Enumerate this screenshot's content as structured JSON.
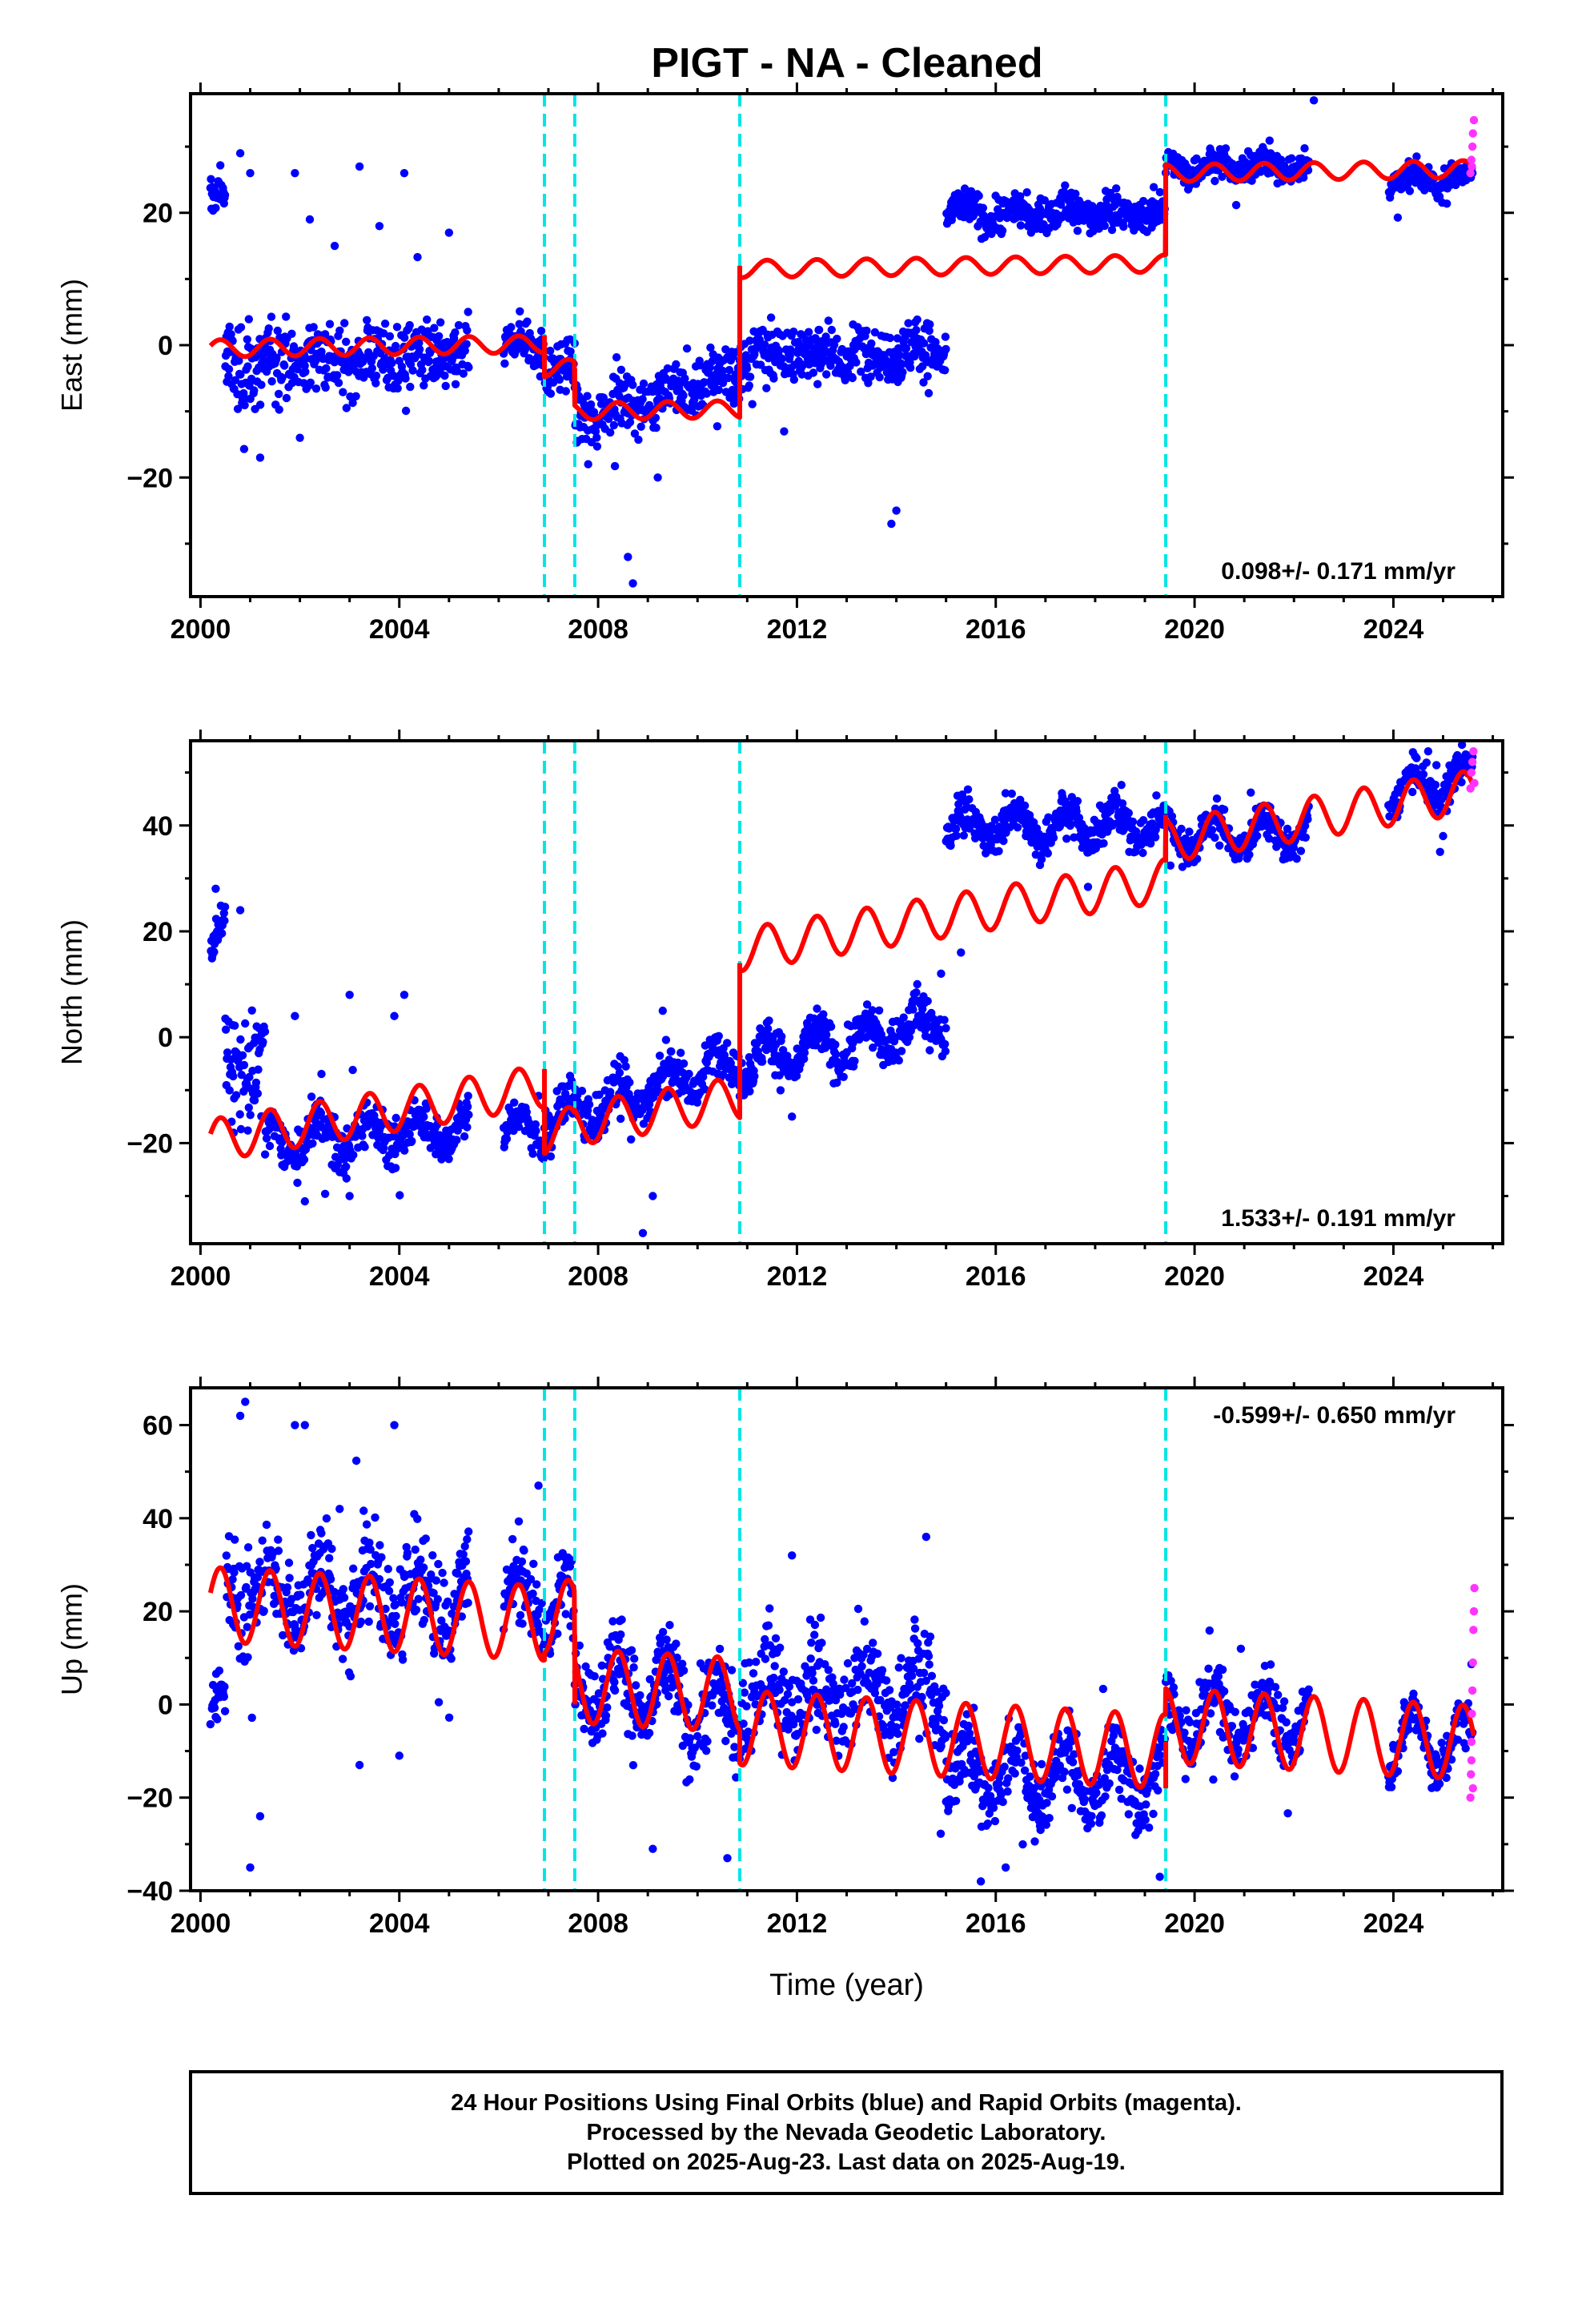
{
  "chart_data": {
    "type": "scatter",
    "title": "PIGT  - NA - Cleaned",
    "x_tick_labels": [
      "2000",
      "2004",
      "2008",
      "2012",
      "2016",
      "2020",
      "2024"
    ],
    "xlabel": "Time (year)",
    "xlim": [
      1999.8,
      2026.2
    ],
    "colors": {
      "final_orbits": "#0000ff",
      "rapid_orbits": "#ff33ff",
      "model": "#ff0000",
      "offsets": "#00e5e5",
      "frame": "#000000"
    },
    "offset_epochs": [
      2006.92,
      2007.53,
      2010.85,
      2019.42
    ],
    "panels": [
      {
        "component": "east",
        "ylabel": "East (mm)",
        "ylim": [
          -38,
          38
        ],
        "yticks": [
          -20,
          0,
          20
        ],
        "y_tick_labels": [
          "−20",
          "0",
          "20"
        ],
        "rate_label": "0.098+/- 0.171 mm/yr",
        "rate_position": "bottom-right",
        "data_segments": [
          {
            "x": [
              2000.2,
              2000.5
            ],
            "y": [
              22,
              22
            ],
            "spread": 2.5
          },
          {
            "x": [
              2000.5,
              2001.3
            ],
            "y": [
              -3,
              -3
            ],
            "spread": 6
          },
          {
            "x": [
              2001.3,
              2005.4
            ],
            "y": [
              -2.5,
              -1.5
            ],
            "spread": 4.5
          },
          {
            "x": [
              2006.1,
              2006.92
            ],
            "y": [
              0,
              0
            ],
            "spread": 3
          },
          {
            "x": [
              2006.92,
              2007.53
            ],
            "y": [
              -4,
              -4
            ],
            "spread": 3.5
          },
          {
            "x": [
              2007.53,
              2010.85
            ],
            "y": [
              -11,
              -4
            ],
            "spread": 4
          },
          {
            "x": [
              2010.85,
              2015.0
            ],
            "y": [
              -1.5,
              -1
            ],
            "spread": 4
          },
          {
            "x": [
              2015.0,
              2019.42
            ],
            "y": [
              20,
              20
            ],
            "spread": 2.5
          },
          {
            "x": [
              2019.42,
              2022.3
            ],
            "y": [
              27,
              27
            ],
            "spread": 2
          },
          {
            "x": [
              2023.9,
              2025.6
            ],
            "y": [
              25,
              25
            ],
            "spread": 2
          }
        ],
        "outliers": [
          {
            "x": 2000.8,
            "y": 29
          },
          {
            "x": 2001.0,
            "y": 26
          },
          {
            "x": 2001.9,
            "y": 26
          },
          {
            "x": 2002.2,
            "y": 19
          },
          {
            "x": 2003.2,
            "y": 27
          },
          {
            "x": 2004.1,
            "y": 26
          },
          {
            "x": 2005.0,
            "y": 17
          },
          {
            "x": 2001.2,
            "y": -17
          },
          {
            "x": 2002.0,
            "y": -14
          },
          {
            "x": 2007.8,
            "y": -18
          },
          {
            "x": 2008.6,
            "y": -32
          },
          {
            "x": 2008.7,
            "y": -36
          },
          {
            "x": 2013.9,
            "y": -27
          },
          {
            "x": 2014.0,
            "y": -25
          },
          {
            "x": 2022.4,
            "y": 37
          },
          {
            "x": 2009.2,
            "y": -20
          },
          {
            "x": 2003.6,
            "y": 18
          },
          {
            "x": 2002.7,
            "y": 15
          }
        ],
        "rapid": [
          {
            "x": 2025.55,
            "y": 26
          },
          {
            "x": 2025.57,
            "y": 28
          },
          {
            "x": 2025.59,
            "y": 30
          },
          {
            "x": 2025.6,
            "y": 32
          },
          {
            "x": 2025.62,
            "y": 34
          },
          {
            "x": 2025.58,
            "y": 27
          }
        ],
        "model": {
          "rate": 0.098,
          "start": 2000.2,
          "end": 2025.63,
          "segments": [
            {
              "from": 2000.2,
              "to": 2006.92,
              "base": -0.5
            },
            {
              "from": 2006.92,
              "to": 2007.53,
              "base": -3.5
            },
            {
              "from": 2007.53,
              "to": 2010.85,
              "base": -10
            },
            {
              "from": 2010.85,
              "to": 2019.42,
              "base": 11.5
            },
            {
              "from": 2019.42,
              "to": 2025.63,
              "base": 26
            }
          ],
          "amplitude": 1.3,
          "jumps": [
            {
              "t": 2006.92,
              "from": 1.5,
              "to": -3.5
            },
            {
              "t": 2007.53,
              "from": -3.5,
              "to": -8
            },
            {
              "t": 2010.85,
              "from": -8.5,
              "to": 12
            },
            {
              "t": 2019.42,
              "from": 13.5,
              "to": 27.5
            }
          ]
        }
      },
      {
        "component": "north",
        "ylabel": "North (mm)",
        "ylim": [
          -39,
          56
        ],
        "yticks": [
          -20,
          0,
          20,
          40
        ],
        "y_tick_labels": [
          "−20",
          "0",
          "20",
          "40"
        ],
        "rate_label": "1.533+/- 0.191 mm/yr",
        "rate_position": "bottom-right",
        "data_segments": [
          {
            "x": [
              2000.2,
              2000.5
            ],
            "y": [
              16,
              20
            ],
            "spread": 3
          },
          {
            "x": [
              2000.5,
              2001.3
            ],
            "y": [
              -5,
              -5
            ],
            "spread": 10
          },
          {
            "x": [
              2001.3,
              2005.4
            ],
            "y": [
              -20,
              -17
            ],
            "spread": 4
          },
          {
            "x": [
              2006.1,
              2006.92
            ],
            "y": [
              -18,
              -17
            ],
            "spread": 3
          },
          {
            "x": [
              2006.92,
              2010.85
            ],
            "y": [
              -16,
              -4
            ],
            "spread": 4
          },
          {
            "x": [
              2010.85,
              2015.0
            ],
            "y": [
              -5,
              3
            ],
            "spread": 4
          },
          {
            "x": [
              2015.0,
              2019.42
            ],
            "y": [
              40,
              40
            ],
            "spread": 3.5
          },
          {
            "x": [
              2019.42,
              2022.3
            ],
            "y": [
              38,
              39
            ],
            "spread": 3
          },
          {
            "x": [
              2023.9,
              2025.6
            ],
            "y": [
              46,
              49
            ],
            "spread": 3
          }
        ],
        "outliers": [
          {
            "x": 2000.8,
            "y": 24
          },
          {
            "x": 2001.9,
            "y": 4
          },
          {
            "x": 2003.0,
            "y": 8
          },
          {
            "x": 2004.1,
            "y": 8
          },
          {
            "x": 2002.1,
            "y": -31
          },
          {
            "x": 2003.0,
            "y": -30
          },
          {
            "x": 2008.9,
            "y": -37
          },
          {
            "x": 2009.1,
            "y": -30
          },
          {
            "x": 2009.3,
            "y": 5
          },
          {
            "x": 2011.9,
            "y": -15
          },
          {
            "x": 2015.3,
            "y": 16
          },
          {
            "x": 2024.7,
            "y": 54
          },
          {
            "x": 2025.0,
            "y": 38
          },
          {
            "x": 2014.9,
            "y": 12
          },
          {
            "x": 2003.9,
            "y": 4
          }
        ],
        "rapid": [
          {
            "x": 2025.55,
            "y": 47
          },
          {
            "x": 2025.57,
            "y": 50
          },
          {
            "x": 2025.59,
            "y": 52
          },
          {
            "x": 2025.61,
            "y": 54
          },
          {
            "x": 2025.63,
            "y": 48
          }
        ],
        "model": {
          "rate": 1.533,
          "start": 2000.2,
          "end": 2025.63,
          "segments": [
            {
              "from": 2000.2,
              "to": 2006.92,
              "base": -19.5
            },
            {
              "from": 2006.92,
              "to": 2007.53,
              "base": -18
            },
            {
              "from": 2007.53,
              "to": 2010.85,
              "base": -16.5
            },
            {
              "from": 2010.85,
              "to": 2019.42,
              "base": 16.5
            },
            {
              "from": 2019.42,
              "to": 2025.63,
              "base": 37
            }
          ],
          "amplitude": 4,
          "jumps": [
            {
              "t": 2006.92,
              "from": -6,
              "to": -19
            },
            {
              "t": 2010.85,
              "from": -9.5,
              "to": 14
            },
            {
              "t": 2019.42,
              "from": 33,
              "to": 42
            }
          ]
        }
      },
      {
        "component": "up",
        "ylabel": "Up (mm)",
        "ylim": [
          -40,
          68
        ],
        "yticks": [
          -40,
          -20,
          0,
          20,
          40,
          60
        ],
        "y_tick_labels": [
          "−40",
          "−20",
          "0",
          "20",
          "40",
          "60"
        ],
        "rate_label": "-0.599+/- 0.650 mm/yr",
        "rate_position": "top-right",
        "data_segments": [
          {
            "x": [
              2000.2,
              2000.5
            ],
            "y": [
              -3,
              -3
            ],
            "spread": 5
          },
          {
            "x": [
              2000.5,
              2005.4
            ],
            "y": [
              25,
              23
            ],
            "spread": 10
          },
          {
            "x": [
              2006.1,
              2007.53
            ],
            "y": [
              24,
              20
            ],
            "spread": 8
          },
          {
            "x": [
              2007.53,
              2010.85
            ],
            "y": [
              6,
              -2
            ],
            "spread": 9
          },
          {
            "x": [
              2010.85,
              2015.0
            ],
            "y": [
              2,
              3
            ],
            "spread": 10
          },
          {
            "x": [
              2015.0,
              2019.42
            ],
            "y": [
              -15,
              -16
            ],
            "spread": 7
          },
          {
            "x": [
              2019.42,
              2022.3
            ],
            "y": [
              -3,
              -3
            ],
            "spread": 6
          },
          {
            "x": [
              2023.9,
              2025.6
            ],
            "y": [
              -7,
              -9
            ],
            "spread": 5
          }
        ],
        "outliers": [
          {
            "x": 2000.9,
            "y": 65
          },
          {
            "x": 2000.8,
            "y": 62
          },
          {
            "x": 2001.9,
            "y": 60
          },
          {
            "x": 2002.1,
            "y": 60
          },
          {
            "x": 2003.9,
            "y": 60
          },
          {
            "x": 2001.0,
            "y": -35
          },
          {
            "x": 2003.2,
            "y": -13
          },
          {
            "x": 2004.0,
            "y": -11
          },
          {
            "x": 2001.2,
            "y": -24
          },
          {
            "x": 2009.1,
            "y": -31
          },
          {
            "x": 2010.6,
            "y": -33
          },
          {
            "x": 2015.7,
            "y": -38
          },
          {
            "x": 2016.2,
            "y": -35
          },
          {
            "x": 2019.3,
            "y": -37
          },
          {
            "x": 2014.6,
            "y": 36
          },
          {
            "x": 2011.9,
            "y": 32
          },
          {
            "x": 2006.8,
            "y": 47
          },
          {
            "x": 2002.8,
            "y": 42
          }
        ],
        "rapid": [
          {
            "x": 2025.55,
            "y": -20
          },
          {
            "x": 2025.56,
            "y": -15
          },
          {
            "x": 2025.57,
            "y": -8
          },
          {
            "x": 2025.58,
            "y": -2
          },
          {
            "x": 2025.59,
            "y": 3
          },
          {
            "x": 2025.6,
            "y": 9
          },
          {
            "x": 2025.61,
            "y": 16
          },
          {
            "x": 2025.62,
            "y": 20
          },
          {
            "x": 2025.63,
            "y": 25
          },
          {
            "x": 2025.57,
            "y": -12
          },
          {
            "x": 2025.6,
            "y": -18
          }
        ],
        "model": {
          "rate": -0.599,
          "start": 2000.2,
          "end": 2025.63,
          "segments": [
            {
              "from": 2000.2,
              "to": 2006.92,
              "base": 21.5
            },
            {
              "from": 2006.92,
              "to": 2007.53,
              "base": 19
            },
            {
              "from": 2007.53,
              "to": 2010.85,
              "base": 4
            },
            {
              "from": 2010.85,
              "to": 2019.42,
              "base": -5
            },
            {
              "from": 2019.42,
              "to": 2025.63,
              "base": -4.5
            }
          ],
          "amplitude": 8,
          "jumps": [
            {
              "t": 2007.53,
              "from": 15,
              "to": 0
            },
            {
              "t": 2019.42,
              "from": -18,
              "to": -8
            }
          ]
        }
      }
    ],
    "footer": [
      "24 Hour Positions Using Final Orbits (blue) and Rapid Orbits (magenta).",
      "Processed by the Nevada Geodetic Laboratory.",
      "Plotted on 2025-Aug-23. Last data on 2025-Aug-19."
    ]
  }
}
